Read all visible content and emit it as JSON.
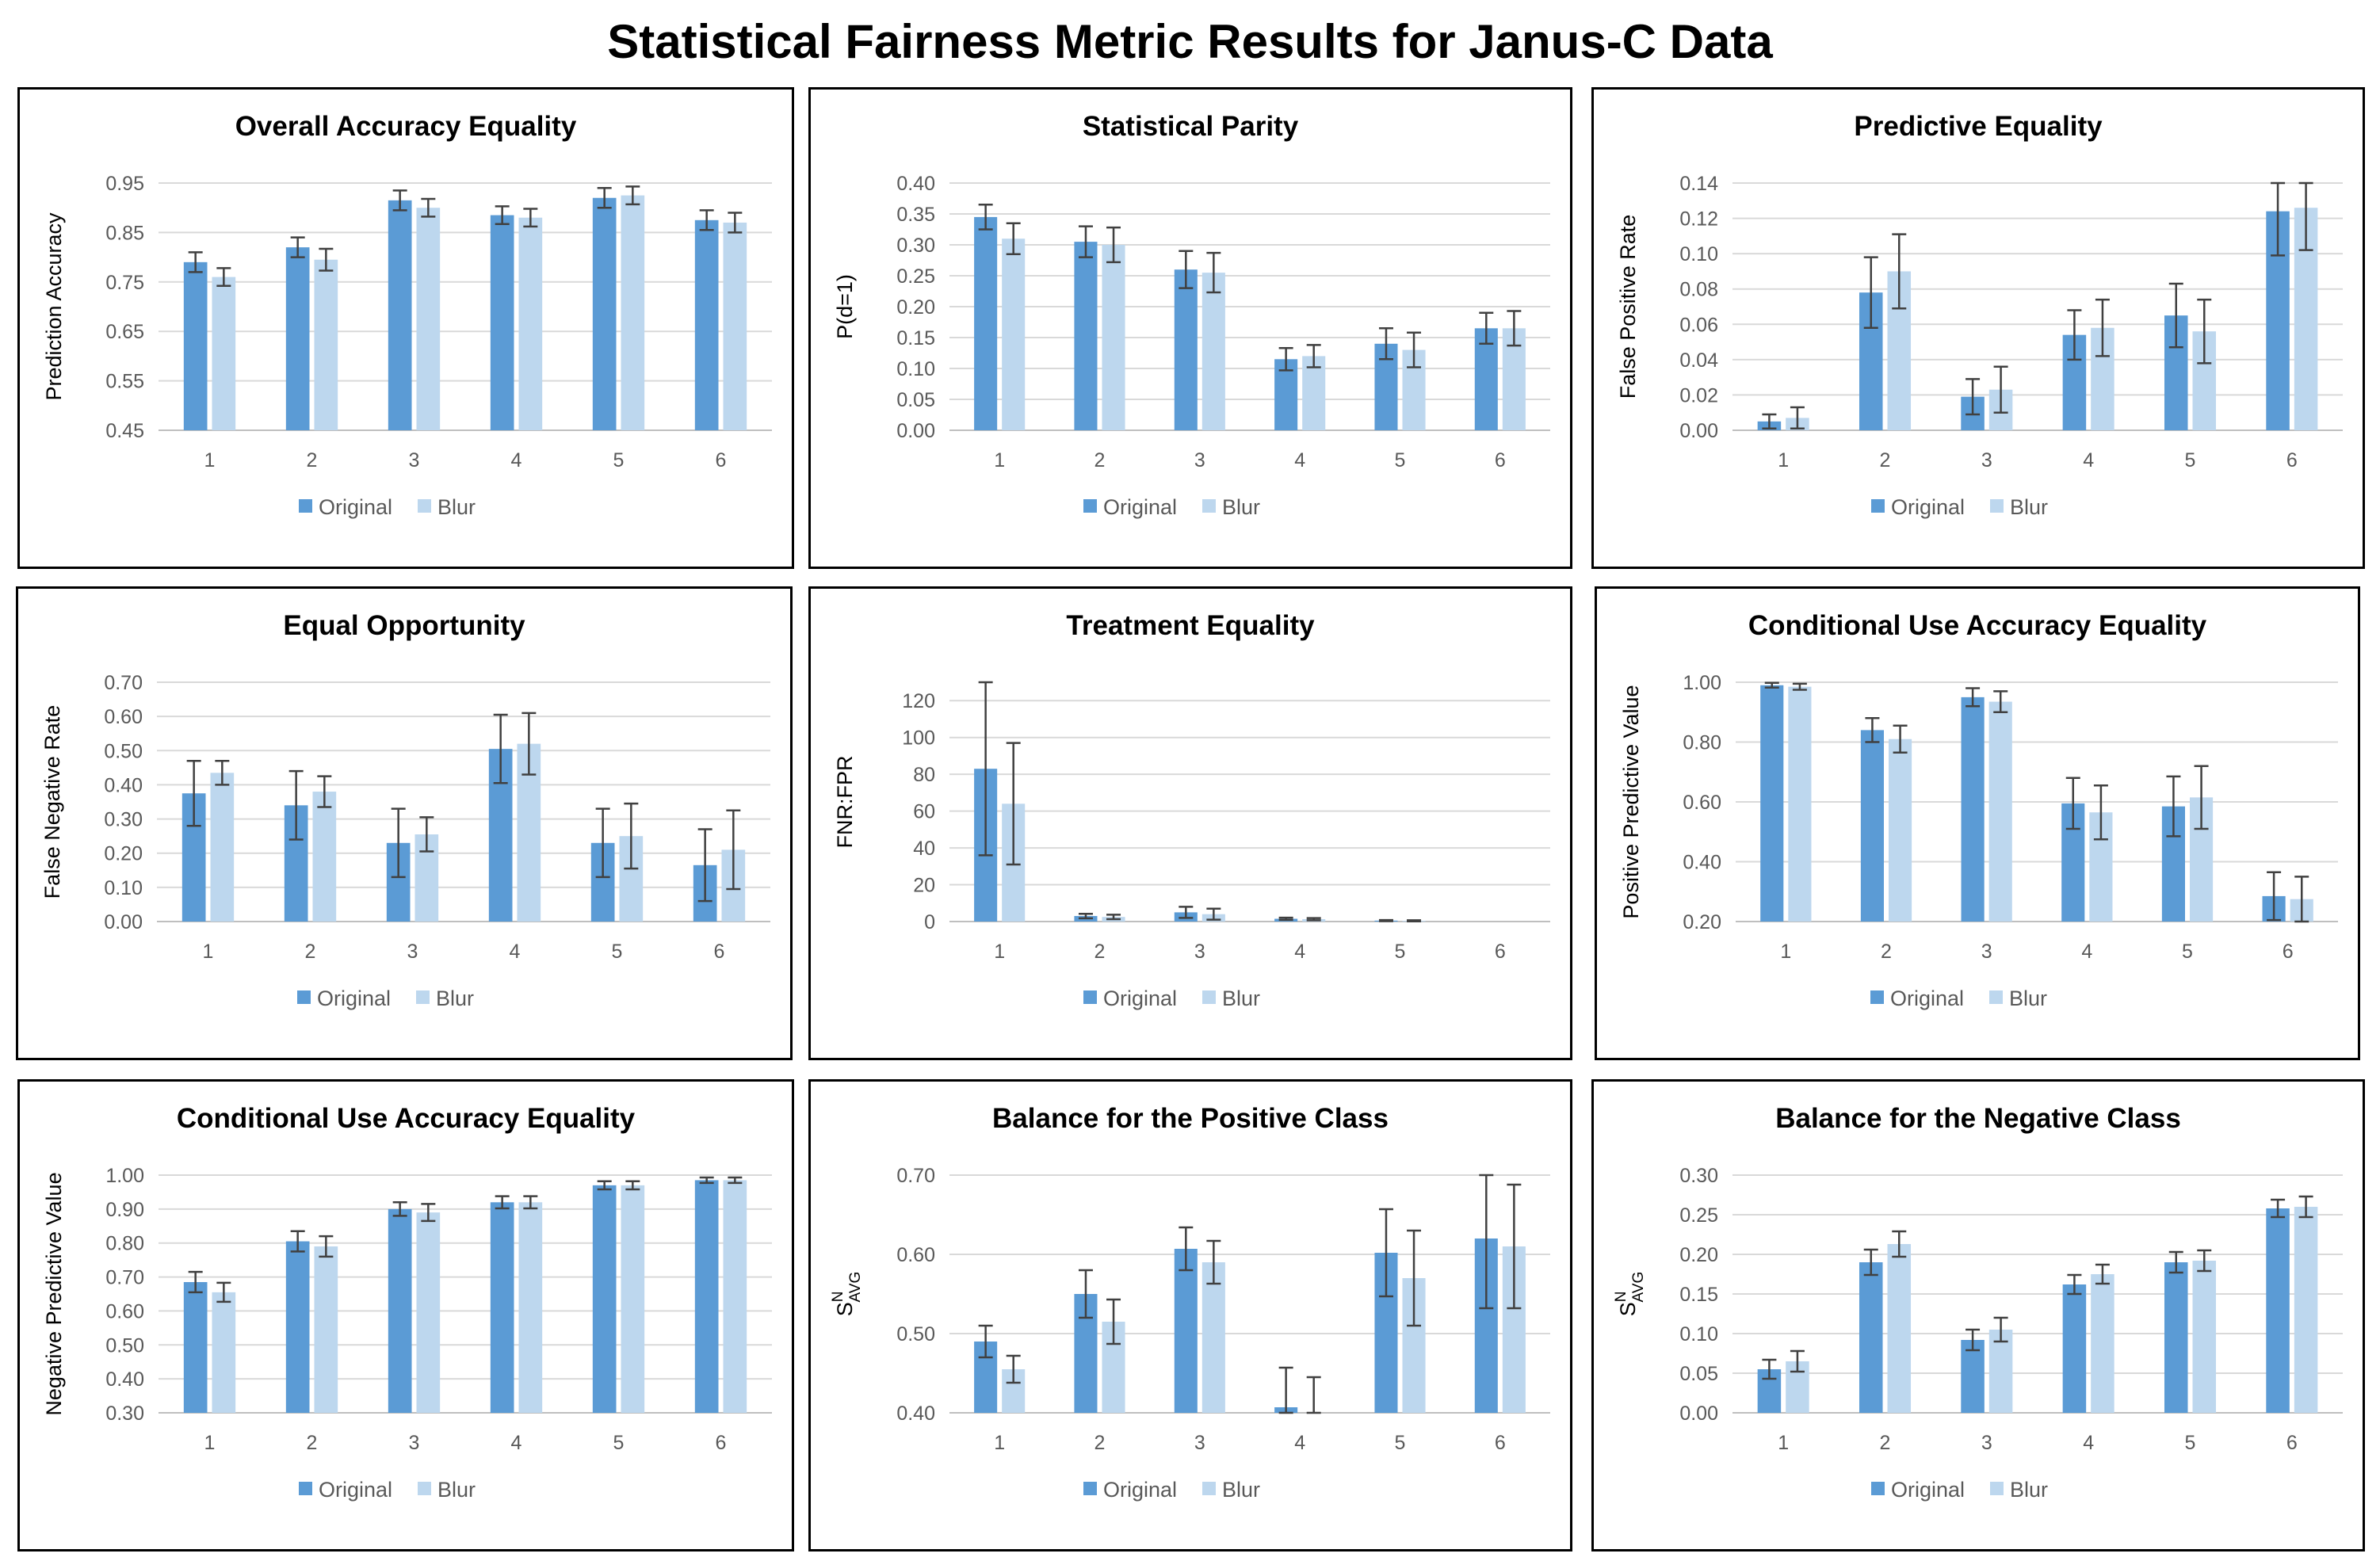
{
  "title": "Statistical Fairness Metric Results for Janus-C Data",
  "colors": {
    "original": "#5B9BD5",
    "blur": "#BDD7EE",
    "grid": "#D9D9D9",
    "axis": "#BFBFBF",
    "error": "#404040",
    "text": "#595959"
  },
  "chart_data": [
    {
      "type": "bar",
      "title": "Overall Accuracy Equality",
      "xlabel": "",
      "ylabel": "Prediction Accuracy",
      "categories": [
        "1",
        "2",
        "3",
        "4",
        "5",
        "6"
      ],
      "ylim": [
        0.45,
        0.95
      ],
      "yticks": [
        0.45,
        0.55,
        0.65,
        0.75,
        0.85,
        0.95
      ],
      "ytick_labels": [
        "0.45",
        "0.55",
        "0.65",
        "0.75",
        "0.85",
        "0.95"
      ],
      "series": [
        {
          "name": "Original",
          "values": [
            0.79,
            0.82,
            0.915,
            0.885,
            0.92,
            0.875
          ],
          "errors": [
            0.02,
            0.02,
            0.02,
            0.018,
            0.02,
            0.02
          ]
        },
        {
          "name": "Blur",
          "values": [
            0.76,
            0.795,
            0.9,
            0.88,
            0.925,
            0.87
          ],
          "errors": [
            0.018,
            0.022,
            0.018,
            0.018,
            0.018,
            0.02
          ]
        }
      ],
      "legend": [
        "Original",
        "Blur"
      ],
      "legend_position": "bottom"
    },
    {
      "type": "bar",
      "title": "Statistical Parity",
      "xlabel": "",
      "ylabel": "P(d=1)",
      "categories": [
        "1",
        "2",
        "3",
        "4",
        "5",
        "6"
      ],
      "ylim": [
        0,
        0.4
      ],
      "yticks": [
        0,
        0.05,
        0.1,
        0.15,
        0.2,
        0.25,
        0.3,
        0.35,
        0.4
      ],
      "ytick_labels": [
        "0.00",
        "0.05",
        "0.10",
        "0.15",
        "0.20",
        "0.25",
        "0.30",
        "0.35",
        "0.40"
      ],
      "series": [
        {
          "name": "Original",
          "values": [
            0.345,
            0.305,
            0.26,
            0.115,
            0.14,
            0.165
          ],
          "errors": [
            0.02,
            0.025,
            0.03,
            0.018,
            0.025,
            0.025
          ]
        },
        {
          "name": "Blur",
          "values": [
            0.31,
            0.3,
            0.255,
            0.12,
            0.13,
            0.165
          ],
          "errors": [
            0.025,
            0.028,
            0.032,
            0.018,
            0.028,
            0.028
          ]
        }
      ],
      "legend": [
        "Original",
        "Blur"
      ],
      "legend_position": "bottom"
    },
    {
      "type": "bar",
      "title": "Predictive Equality",
      "xlabel": "",
      "ylabel": "False Positive Rate",
      "categories": [
        "1",
        "2",
        "3",
        "4",
        "5",
        "6"
      ],
      "ylim": [
        0,
        0.14
      ],
      "yticks": [
        0,
        0.02,
        0.04,
        0.06,
        0.08,
        0.1,
        0.12,
        0.14
      ],
      "ytick_labels": [
        "0.00",
        "0.02",
        "0.04",
        "0.06",
        "0.08",
        "0.10",
        "0.12",
        "0.14"
      ],
      "series": [
        {
          "name": "Original",
          "values": [
            0.005,
            0.078,
            0.019,
            0.054,
            0.065,
            0.124
          ],
          "errors": [
            0.004,
            0.02,
            0.01,
            0.014,
            0.018,
            0.025
          ]
        },
        {
          "name": "Blur",
          "values": [
            0.007,
            0.09,
            0.023,
            0.058,
            0.056,
            0.126
          ],
          "errors": [
            0.006,
            0.021,
            0.013,
            0.016,
            0.018,
            0.024
          ]
        }
      ],
      "legend": [
        "Original",
        "Blur"
      ],
      "legend_position": "bottom"
    },
    {
      "type": "bar",
      "title": "Equal Opportunity",
      "xlabel": "",
      "ylabel": "False Negative Rate",
      "categories": [
        "1",
        "2",
        "3",
        "4",
        "5",
        "6"
      ],
      "ylim": [
        0,
        0.7
      ],
      "yticks": [
        0,
        0.1,
        0.2,
        0.3,
        0.4,
        0.5,
        0.6,
        0.7
      ],
      "ytick_labels": [
        "0.00",
        "0.10",
        "0.20",
        "0.30",
        "0.40",
        "0.50",
        "0.60",
        "0.70"
      ],
      "series": [
        {
          "name": "Original",
          "values": [
            0.375,
            0.34,
            0.23,
            0.505,
            0.23,
            0.165
          ],
          "errors": [
            0.095,
            0.1,
            0.1,
            0.1,
            0.1,
            0.105
          ]
        },
        {
          "name": "Blur",
          "values": [
            0.435,
            0.38,
            0.255,
            0.52,
            0.25,
            0.21
          ],
          "errors": [
            0.035,
            0.045,
            0.05,
            0.09,
            0.095,
            0.115
          ]
        }
      ],
      "legend": [
        "Original",
        "Blur"
      ],
      "legend_position": "bottom"
    },
    {
      "type": "bar",
      "title": "Treatment Equality",
      "xlabel": "",
      "ylabel": "FNR:FPR",
      "categories": [
        "1",
        "2",
        "3",
        "4",
        "5",
        "6"
      ],
      "ylim": [
        0,
        130
      ],
      "yticks": [
        0,
        20,
        40,
        60,
        80,
        100,
        120
      ],
      "ytick_labels": [
        "0",
        "20",
        "40",
        "60",
        "80",
        "100",
        "120"
      ],
      "series": [
        {
          "name": "Original",
          "values": [
            83,
            3,
            5,
            1.5,
            0.5,
            0
          ],
          "errors": [
            47,
            1.2,
            3,
            0.6,
            0.3,
            0
          ]
        },
        {
          "name": "Blur",
          "values": [
            64,
            2.5,
            4,
            1.3,
            0.4,
            0
          ],
          "errors": [
            33,
            1.2,
            3,
            0.6,
            0.3,
            0
          ]
        }
      ],
      "legend": [
        "Original",
        "Blur"
      ],
      "legend_position": "bottom"
    },
    {
      "type": "bar",
      "title": "Conditional Use Accuracy Equality",
      "xlabel": "",
      "ylabel": "Positive Predictive Value",
      "categories": [
        "1",
        "2",
        "3",
        "4",
        "5",
        "6"
      ],
      "ylim": [
        0.2,
        1.0
      ],
      "yticks": [
        0.2,
        0.4,
        0.6,
        0.8,
        1.0
      ],
      "ytick_labels": [
        "0.20",
        "0.40",
        "0.60",
        "0.80",
        "1.00"
      ],
      "series": [
        {
          "name": "Original",
          "values": [
            0.99,
            0.84,
            0.95,
            0.595,
            0.585,
            0.285
          ],
          "errors": [
            0.008,
            0.04,
            0.03,
            0.085,
            0.1,
            0.08
          ]
        },
        {
          "name": "Blur",
          "values": [
            0.985,
            0.81,
            0.935,
            0.565,
            0.615,
            0.275
          ],
          "errors": [
            0.01,
            0.045,
            0.035,
            0.09,
            0.105,
            0.075
          ]
        }
      ],
      "legend": [
        "Original",
        "Blur"
      ],
      "legend_position": "bottom"
    },
    {
      "type": "bar",
      "title": "Conditional Use Accuracy Equality",
      "xlabel": "",
      "ylabel": "Negative Predictive Value",
      "categories": [
        "1",
        "2",
        "3",
        "4",
        "5",
        "6"
      ],
      "ylim": [
        0.3,
        1.0
      ],
      "yticks": [
        0.3,
        0.4,
        0.5,
        0.6,
        0.7,
        0.8,
        0.9,
        1.0
      ],
      "ytick_labels": [
        "0.30",
        "0.40",
        "0.50",
        "0.60",
        "0.70",
        "0.80",
        "0.90",
        "1.00"
      ],
      "series": [
        {
          "name": "Original",
          "values": [
            0.685,
            0.805,
            0.9,
            0.92,
            0.97,
            0.985
          ],
          "errors": [
            0.03,
            0.03,
            0.02,
            0.018,
            0.012,
            0.008
          ]
        },
        {
          "name": "Blur",
          "values": [
            0.655,
            0.79,
            0.89,
            0.92,
            0.97,
            0.985
          ],
          "errors": [
            0.028,
            0.03,
            0.025,
            0.018,
            0.012,
            0.008
          ]
        }
      ],
      "legend": [
        "Original",
        "Blur"
      ],
      "legend_position": "bottom"
    },
    {
      "type": "bar",
      "title": "Balance for the Positive Class",
      "xlabel": "",
      "ylabel": {
        "main": "S",
        "sup": "N",
        "sub": "AVG"
      },
      "categories": [
        "1",
        "2",
        "3",
        "4",
        "5",
        "6"
      ],
      "ylim": [
        0.4,
        0.7
      ],
      "yticks": [
        0.4,
        0.5,
        0.6,
        0.7
      ],
      "ytick_labels": [
        "0.40",
        "0.50",
        "0.60",
        "0.70"
      ],
      "series": [
        {
          "name": "Original",
          "values": [
            0.49,
            0.55,
            0.607,
            0.407,
            0.602,
            0.62
          ],
          "errors": [
            0.02,
            0.03,
            0.027,
            0.05,
            0.055,
            0.088
          ]
        },
        {
          "name": "Blur",
          "values": [
            0.455,
            0.515,
            0.59,
            0.4,
            0.57,
            0.61
          ],
          "errors": [
            0.017,
            0.028,
            0.027,
            0.045,
            0.06,
            0.078
          ]
        }
      ],
      "legend": [
        "Original",
        "Blur"
      ],
      "legend_position": "bottom"
    },
    {
      "type": "bar",
      "title": "Balance for the Negative Class",
      "xlabel": "",
      "ylabel": {
        "main": "S",
        "sup": "N",
        "sub": "AVG"
      },
      "categories": [
        "1",
        "2",
        "3",
        "4",
        "5",
        "6"
      ],
      "ylim": [
        0,
        0.3
      ],
      "yticks": [
        0,
        0.05,
        0.1,
        0.15,
        0.2,
        0.25,
        0.3
      ],
      "ytick_labels": [
        "0.00",
        "0.05",
        "0.10",
        "0.15",
        "0.20",
        "0.25",
        "0.30"
      ],
      "series": [
        {
          "name": "Original",
          "values": [
            0.055,
            0.19,
            0.092,
            0.162,
            0.19,
            0.258
          ],
          "errors": [
            0.012,
            0.016,
            0.013,
            0.012,
            0.013,
            0.011
          ]
        },
        {
          "name": "Blur",
          "values": [
            0.065,
            0.213,
            0.105,
            0.175,
            0.192,
            0.26
          ],
          "errors": [
            0.013,
            0.016,
            0.015,
            0.012,
            0.013,
            0.013
          ]
        }
      ],
      "legend": [
        "Original",
        "Blur"
      ],
      "legend_position": "bottom"
    }
  ]
}
